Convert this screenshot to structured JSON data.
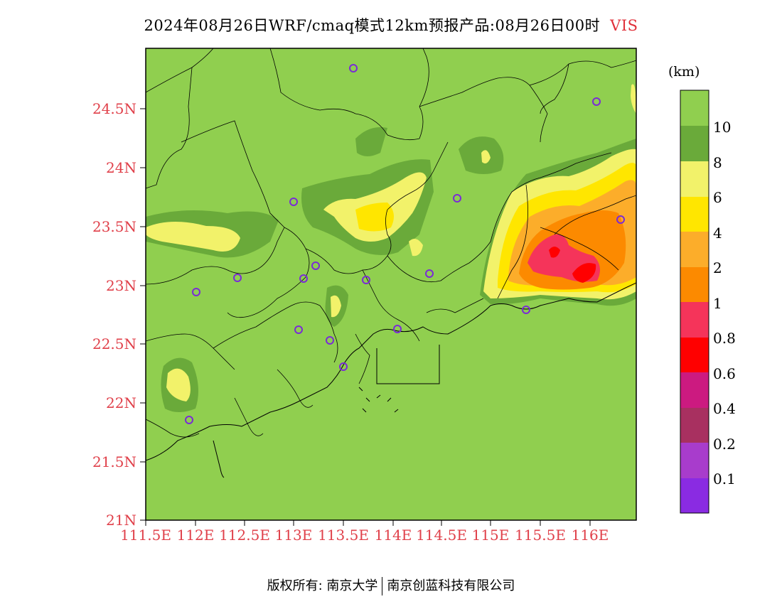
{
  "title": {
    "text": "2024年08月26日WRF/cmaq模式12km预报产品:08月26日00时",
    "variable": "VIS"
  },
  "colorbar": {
    "unit": "(km)",
    "labels": [
      "10",
      "8",
      "6",
      "4",
      "2",
      "1",
      "0.8",
      "0.6",
      "0.4",
      "0.2",
      "0.1"
    ],
    "colors": [
      "#90cf4f",
      "#6aaa3a",
      "#f2f26a",
      "#ffe600",
      "#fcad2a",
      "#fc8a00",
      "#f5345a",
      "#ff0000",
      "#cc1a80",
      "#a83060",
      "#a83ccc",
      "#8a2be2"
    ]
  },
  "axes": {
    "lat_ticks": [
      "24.5N",
      "24N",
      "23.5N",
      "23N",
      "22.5N",
      "22N",
      "21.5N",
      "21N"
    ],
    "lon_ticks": [
      "111.5E",
      "112E",
      "112.5E",
      "113E",
      "113.5E",
      "114E",
      "114.5E",
      "115E",
      "115.5E",
      "116E"
    ]
  },
  "footer": {
    "left": "版权所有: 南京大学",
    "right": "南京创蓝科技有限公司"
  }
}
